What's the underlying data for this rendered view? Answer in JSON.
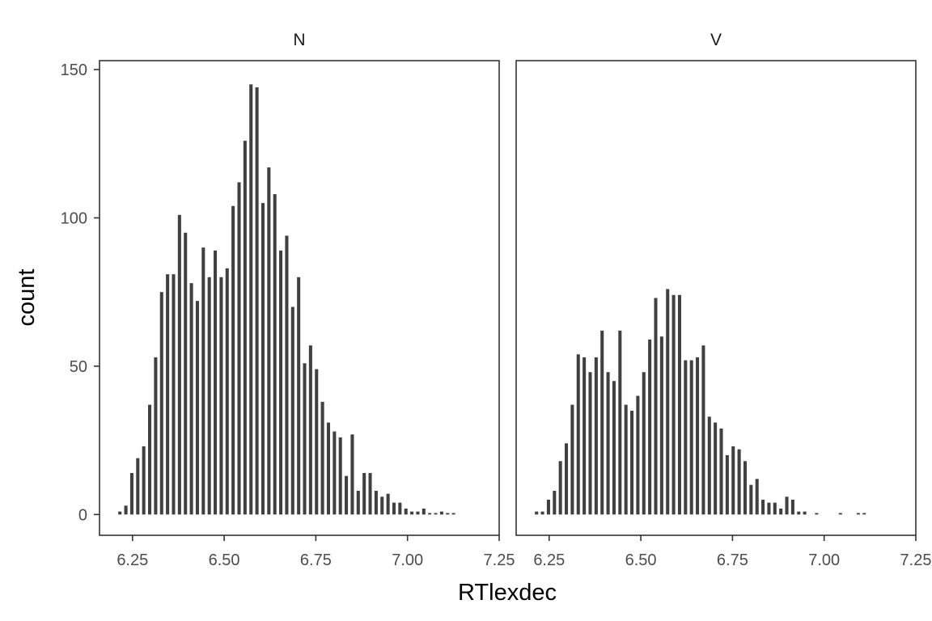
{
  "chart_data": {
    "type": "bar",
    "subtype": "histogram",
    "facets": [
      "N",
      "V"
    ],
    "xlabel": "RTlexdec",
    "ylabel": "count",
    "xlim": [
      6.16,
      7.25
    ],
    "ylim": [
      -7,
      153
    ],
    "xticks": [
      6.25,
      6.5,
      6.75,
      7.0,
      7.25
    ],
    "xtick_labels": [
      "6.25",
      "6.50",
      "6.75",
      "7.00",
      "7.25"
    ],
    "yticks": [
      0,
      50,
      100,
      150
    ],
    "ytick_labels": [
      "0",
      "50",
      "100",
      "150"
    ],
    "bin_start": 6.2075,
    "bin_width": 0.01625,
    "grid": false,
    "legend": "none",
    "bar_color": "#404040",
    "series": [
      {
        "name": "N",
        "values": [
          1,
          3,
          14,
          19,
          23,
          37,
          53,
          75,
          81,
          81,
          101,
          95,
          78,
          72,
          90,
          80,
          89,
          80,
          83,
          104,
          112,
          126,
          145,
          144,
          105,
          117,
          108,
          89,
          94,
          70,
          80,
          51,
          57,
          49,
          38,
          31,
          28,
          26,
          13,
          27,
          8,
          14,
          14,
          8,
          6,
          7,
          4,
          4,
          2,
          1,
          1,
          2,
          0.5,
          0.5,
          1,
          0.5,
          0.5
        ]
      },
      {
        "name": "V",
        "values": [
          1,
          1,
          5,
          8,
          18,
          24,
          37,
          54,
          53,
          48,
          53,
          62,
          48,
          45,
          62,
          37,
          35,
          40,
          48,
          59,
          73,
          60,
          76,
          74,
          74,
          52,
          52,
          53,
          57,
          33,
          31,
          29,
          20,
          23,
          22,
          18,
          10,
          12,
          5,
          4,
          4,
          2,
          6,
          5,
          1,
          1,
          0,
          0.5,
          0,
          0,
          0,
          0.5,
          0,
          0,
          0.5,
          0.5
        ]
      }
    ]
  }
}
